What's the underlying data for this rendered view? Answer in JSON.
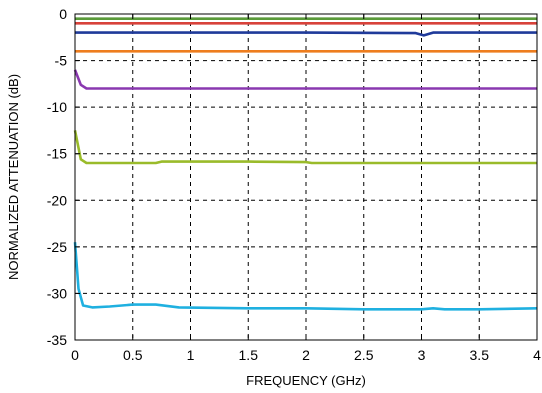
{
  "chart_data": {
    "type": "line",
    "xlabel": "FREQUENCY (GHz)",
    "ylabel": "NORMALIZED ATTENUATION (dB)",
    "xlim": [
      0,
      4
    ],
    "ylim": [
      -35,
      0
    ],
    "x_ticks": [
      0,
      0.5,
      1,
      1.5,
      2,
      2.5,
      3,
      3.5,
      4
    ],
    "x_tick_labels": [
      "0",
      "0.5",
      "1",
      "1.5",
      "2",
      "2.5",
      "3",
      "3.5",
      "4"
    ],
    "y_ticks": [
      0,
      -5,
      -10,
      -15,
      -20,
      -25,
      -30,
      -35
    ],
    "y_tick_labels": [
      "0",
      "-5",
      "-10",
      "-15",
      "-20",
      "-25",
      "-30",
      "-35"
    ],
    "grid": true,
    "grid_style": "dashed",
    "series": [
      {
        "color": "#5a9a3a",
        "points": [
          [
            0,
            -0.5
          ],
          [
            1,
            -0.5
          ],
          [
            2,
            -0.5
          ],
          [
            3,
            -0.5
          ],
          [
            4,
            -0.5
          ]
        ]
      },
      {
        "color": "#d8423a",
        "points": [
          [
            0,
            -1.0
          ],
          [
            1,
            -1.0
          ],
          [
            2,
            -1.0
          ],
          [
            3,
            -1.0
          ],
          [
            4,
            -1.0
          ]
        ]
      },
      {
        "color": "#1f3a9a",
        "points": [
          [
            0,
            -2.0
          ],
          [
            1,
            -2.0
          ],
          [
            2,
            -2.0
          ],
          [
            2.95,
            -2.05
          ],
          [
            3.02,
            -2.3
          ],
          [
            3.1,
            -2.0
          ],
          [
            4,
            -2.0
          ]
        ]
      },
      {
        "color": "#ee7d1e",
        "points": [
          [
            0,
            -4.0
          ],
          [
            1,
            -4.0
          ],
          [
            2,
            -4.0
          ],
          [
            3,
            -4.0
          ],
          [
            4,
            -4.0
          ]
        ]
      },
      {
        "color": "#8a38b0",
        "points": [
          [
            0,
            -6.0
          ],
          [
            0.05,
            -7.6
          ],
          [
            0.1,
            -8.0
          ],
          [
            1,
            -8.0
          ],
          [
            2,
            -8.0
          ],
          [
            3,
            -8.0
          ],
          [
            4,
            -8.0
          ]
        ]
      },
      {
        "color": "#9abb2a",
        "points": [
          [
            0,
            -12.5
          ],
          [
            0.05,
            -15.6
          ],
          [
            0.1,
            -16.0
          ],
          [
            0.7,
            -16.0
          ],
          [
            0.75,
            -15.85
          ],
          [
            1.5,
            -15.85
          ],
          [
            2.0,
            -15.9
          ],
          [
            2.05,
            -16.0
          ],
          [
            3,
            -16.0
          ],
          [
            4,
            -16.0
          ]
        ]
      },
      {
        "color": "#1fb0e0",
        "points": [
          [
            0,
            -24.5
          ],
          [
            0.03,
            -29.5
          ],
          [
            0.07,
            -31.3
          ],
          [
            0.15,
            -31.5
          ],
          [
            0.3,
            -31.4
          ],
          [
            0.5,
            -31.2
          ],
          [
            0.7,
            -31.2
          ],
          [
            0.9,
            -31.5
          ],
          [
            1.5,
            -31.6
          ],
          [
            2.0,
            -31.6
          ],
          [
            2.5,
            -31.7
          ],
          [
            3.0,
            -31.7
          ],
          [
            3.1,
            -31.6
          ],
          [
            3.2,
            -31.7
          ],
          [
            3.5,
            -31.7
          ],
          [
            4,
            -31.6
          ]
        ]
      }
    ]
  }
}
